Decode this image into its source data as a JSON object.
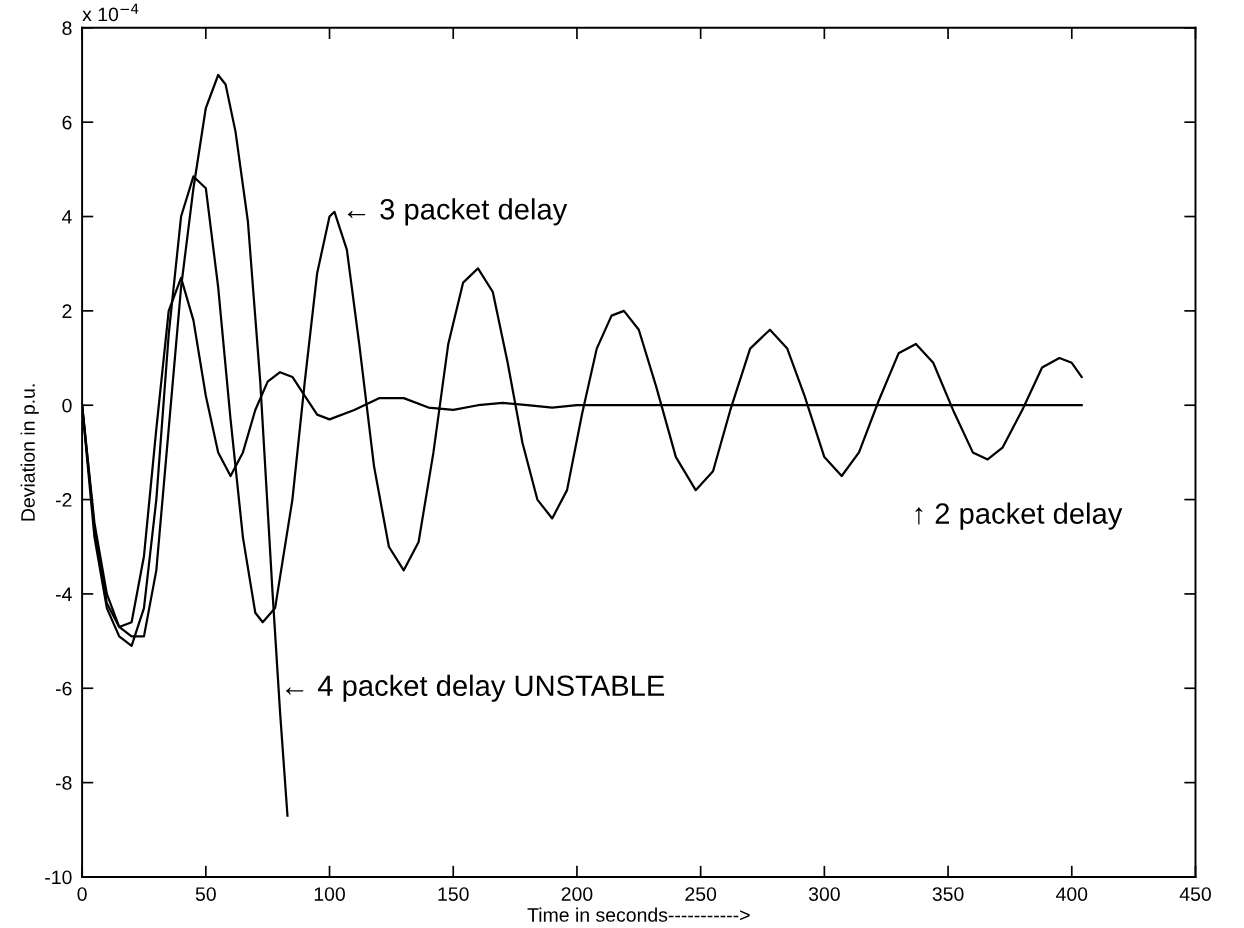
{
  "chart_data": {
    "type": "line",
    "xlabel": "Time in seconds----------->",
    "ylabel": "Deviation in p.u.",
    "xlim": [
      0,
      450
    ],
    "xticks": [
      0,
      50,
      100,
      150,
      200,
      250,
      300,
      350,
      400,
      450
    ],
    "ylim": [
      -10,
      8
    ],
    "yticks": [
      -10,
      -8,
      -6,
      -4,
      -2,
      0,
      2,
      4,
      6,
      8
    ],
    "grid": false,
    "legend": false,
    "marker": "none",
    "line_style": "solid",
    "annotations": [
      "x 10$^{−4}$",
      {
        "text": "← 3 packet delay",
        "x": 105,
        "y": 4.1
      },
      "↑ 2 packet delay",
      {
        "text": "← 4 packet delay UNSTABLE",
        "x": 80,
        "y": -6
      }
    ],
    "series": [
      {
        "color": "#000000",
        "x": [
          0,
          5,
          10,
          15,
          20,
          25,
          30,
          35,
          40,
          45,
          50,
          55,
          60,
          65,
          70,
          75,
          80,
          85,
          90,
          95,
          100,
          110,
          120,
          130,
          140,
          150,
          160,
          170,
          180,
          190,
          200,
          250,
          300,
          350,
          404
        ],
        "values": [
          0,
          -2.5,
          -4.0,
          -4.7,
          -4.6,
          -3.2,
          -0.5,
          2.0,
          2.7,
          1.8,
          0.2,
          -1.0,
          -1.5,
          -1.0,
          -0.1,
          0.5,
          0.7,
          0.6,
          0.2,
          -0.2,
          -0.3,
          -0.1,
          0.15,
          0.15,
          -0.05,
          -0.1,
          0.0,
          0.05,
          0.0,
          -0.05,
          0,
          0,
          0,
          0,
          0
        ]
      },
      {
        "color": "#000000",
        "x": [
          0,
          5,
          10,
          15,
          20,
          25,
          30,
          35,
          40,
          45,
          50,
          55,
          60,
          65,
          70,
          73,
          78,
          85,
          90,
          95,
          100,
          102,
          107,
          112,
          118,
          124,
          130,
          136,
          142,
          148,
          154,
          160,
          166,
          172,
          178,
          184,
          190,
          196,
          202,
          208,
          214,
          219,
          225,
          232,
          240,
          248,
          255,
          262,
          270,
          278,
          285,
          292,
          300,
          307,
          314,
          322,
          330,
          337,
          344,
          352,
          360,
          366,
          372,
          380,
          388,
          395,
          400,
          404
        ],
        "values": [
          0,
          -2.8,
          -4.3,
          -4.9,
          -5.1,
          -4.3,
          -2.0,
          1.5,
          4.0,
          4.85,
          4.6,
          2.5,
          -0.3,
          -2.8,
          -4.4,
          -4.6,
          -4.3,
          -2.0,
          0.5,
          2.8,
          4.0,
          4.1,
          3.3,
          1.3,
          -1.3,
          -3.0,
          -3.5,
          -2.9,
          -1.0,
          1.3,
          2.6,
          2.9,
          2.4,
          0.9,
          -0.8,
          -2.0,
          -2.4,
          -1.8,
          -0.2,
          1.2,
          1.9,
          2.0,
          1.6,
          0.4,
          -1.1,
          -1.8,
          -1.4,
          -0.1,
          1.2,
          1.6,
          1.2,
          0.2,
          -1.1,
          -1.5,
          -1.0,
          0.1,
          1.1,
          1.3,
          0.9,
          -0.1,
          -1.0,
          -1.15,
          -0.9,
          -0.1,
          0.8,
          1.0,
          0.9,
          0.6
        ]
      },
      {
        "color": "#000000",
        "x": [
          0,
          5,
          10,
          15,
          20,
          25,
          30,
          35,
          40,
          45,
          50,
          55,
          58,
          62,
          67,
          72,
          77,
          80,
          83
        ],
        "values": [
          0,
          -2.6,
          -4.2,
          -4.7,
          -4.9,
          -4.9,
          -3.5,
          -0.5,
          2.5,
          4.6,
          6.3,
          7.0,
          6.8,
          5.8,
          3.9,
          0.5,
          -4.0,
          -6.5,
          -8.7
        ]
      }
    ]
  }
}
